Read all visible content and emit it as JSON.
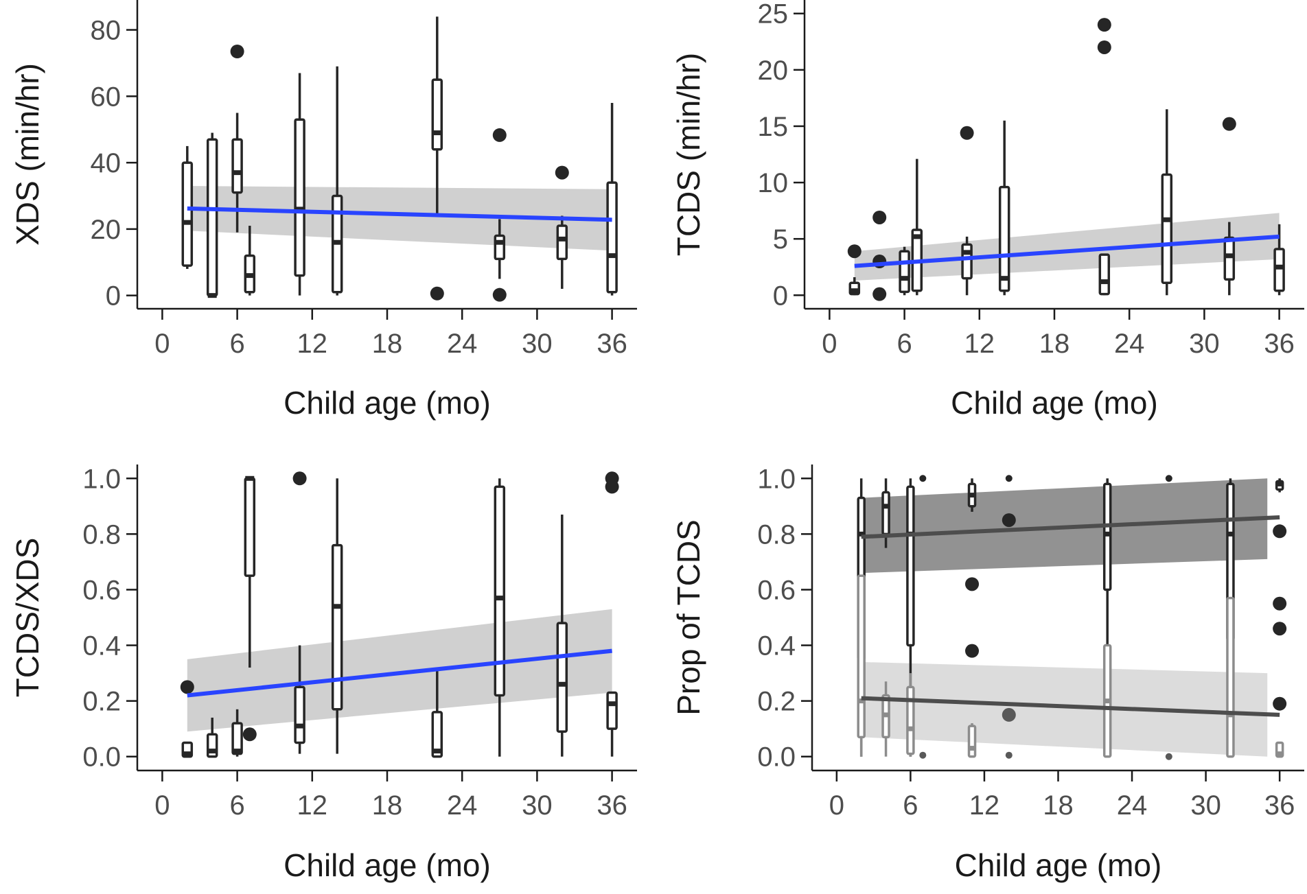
{
  "chart_data": [
    {
      "type": "box",
      "xlabel": "Child age (mo)",
      "ylabel": "XDS (min/hr)",
      "xlim": [
        -2,
        38
      ],
      "ylim": [
        -4,
        89
      ],
      "xticks": [
        0,
        6,
        12,
        18,
        24,
        30,
        36
      ],
      "yticks": [
        0,
        20,
        40,
        60,
        80
      ],
      "tick_labels_x": [
        "0",
        "6",
        "12",
        "18",
        "24",
        "30",
        "36"
      ],
      "tick_labels_y": [
        "0",
        "20",
        "40",
        "60",
        "80"
      ],
      "grid": false,
      "boxes": [
        {
          "x": 2,
          "lower": 8,
          "q1": 9,
          "median": 22,
          "q3": 40,
          "upper": 45
        },
        {
          "x": 4,
          "lower": 0,
          "q1": 0,
          "median": 0,
          "q3": 47,
          "upper": 49
        },
        {
          "x": 6,
          "lower": 19,
          "q1": 31,
          "median": 37,
          "q3": 47,
          "upper": 55
        },
        {
          "x": 7,
          "lower": 0,
          "q1": 1,
          "median": 6,
          "q3": 12,
          "upper": 21
        },
        {
          "x": 11,
          "lower": 0,
          "q1": 6,
          "median": 26,
          "q3": 53,
          "upper": 67
        },
        {
          "x": 14,
          "lower": 0,
          "q1": 1,
          "median": 16,
          "q3": 30,
          "upper": 69
        },
        {
          "x": 22,
          "lower": 24,
          "q1": 44,
          "median": 49,
          "q3": 65,
          "upper": 84
        },
        {
          "x": 27,
          "lower": 5,
          "q1": 11,
          "median": 16,
          "q3": 18,
          "upper": 23
        },
        {
          "x": 32,
          "lower": 2,
          "q1": 11,
          "median": 17,
          "q3": 21,
          "upper": 24
        },
        {
          "x": 36,
          "lower": 0,
          "q1": 1,
          "median": 12,
          "q3": 34,
          "upper": 58
        }
      ],
      "outliers": [
        [
          6,
          73.5
        ],
        [
          22,
          0.6
        ],
        [
          27,
          48.3
        ],
        [
          27,
          0.2
        ],
        [
          32,
          37
        ]
      ],
      "fit_line": {
        "x": [
          2,
          36
        ],
        "y": [
          26.2,
          22.8
        ],
        "color": "#2944ff"
      },
      "band": {
        "x": [
          2,
          36
        ],
        "lower": [
          19.5,
          13.5
        ],
        "upper": [
          33,
          32
        ]
      }
    },
    {
      "type": "box",
      "xlabel": "Child age (mo)",
      "ylabel": "TCDS (min/hr)",
      "xlim": [
        -2,
        38
      ],
      "ylim": [
        -1.2,
        26.2
      ],
      "xticks": [
        0,
        6,
        12,
        18,
        24,
        30,
        36
      ],
      "yticks": [
        0,
        5,
        10,
        15,
        20,
        25
      ],
      "tick_labels_x": [
        "0",
        "6",
        "12",
        "18",
        "24",
        "30",
        "36"
      ],
      "tick_labels_y": [
        "0",
        "5",
        "10",
        "15",
        "20",
        "25"
      ],
      "grid": false,
      "boxes": [
        {
          "x": 2,
          "lower": 0,
          "q1": 0.1,
          "median": 0.4,
          "q3": 1.1,
          "upper": 1.6
        },
        {
          "x": 6,
          "lower": 0,
          "q1": 0.3,
          "median": 1.5,
          "q3": 3.9,
          "upper": 4.3
        },
        {
          "x": 7,
          "lower": 0,
          "q1": 0.4,
          "median": 5.2,
          "q3": 5.8,
          "upper": 12.1
        },
        {
          "x": 11,
          "lower": 0,
          "q1": 1.5,
          "median": 3.8,
          "q3": 4.5,
          "upper": 5.2
        },
        {
          "x": 14,
          "lower": 0,
          "q1": 0.4,
          "median": 1.5,
          "q3": 9.6,
          "upper": 15.5
        },
        {
          "x": 22,
          "lower": 0,
          "q1": 0.1,
          "median": 1.2,
          "q3": 3.6,
          "upper": 3.6
        },
        {
          "x": 27,
          "lower": 0,
          "q1": 1.1,
          "median": 6.7,
          "q3": 10.7,
          "upper": 16.5
        },
        {
          "x": 32,
          "lower": 0,
          "q1": 1.4,
          "median": 3.5,
          "q3": 5.1,
          "upper": 6.5
        },
        {
          "x": 36,
          "lower": 0,
          "q1": 0.4,
          "median": 2.5,
          "q3": 4.1,
          "upper": 6.3
        }
      ],
      "outliers": [
        [
          2,
          3.9
        ],
        [
          4,
          6.9
        ],
        [
          4,
          3
        ],
        [
          4,
          0.1
        ],
        [
          11,
          14.4
        ],
        [
          22,
          24
        ],
        [
          22,
          22
        ],
        [
          32,
          15.2
        ]
      ],
      "fit_line": {
        "x": [
          2,
          36
        ],
        "y": [
          2.6,
          5.2
        ],
        "color": "#2944ff"
      },
      "band": {
        "x": [
          2,
          36
        ],
        "lower": [
          1.3,
          3.2
        ],
        "upper": [
          3.9,
          7.3
        ]
      }
    },
    {
      "type": "box",
      "xlabel": "Child age (mo)",
      "ylabel": "TCDS/XDS",
      "xlim": [
        -2,
        38
      ],
      "ylim": [
        -0.05,
        1.05
      ],
      "xticks": [
        0,
        6,
        12,
        18,
        24,
        30,
        36
      ],
      "yticks": [
        0,
        0.2,
        0.4,
        0.6,
        0.8,
        1.0
      ],
      "tick_labels_x": [
        "0",
        "6",
        "12",
        "18",
        "24",
        "30",
        "36"
      ],
      "tick_labels_y": [
        "0.0",
        "0.2",
        "0.4",
        "0.6",
        "0.8",
        "1.0"
      ],
      "grid": false,
      "boxes": [
        {
          "x": 2,
          "lower": 0,
          "q1": 0,
          "median": 0.01,
          "q3": 0.05,
          "upper": 0.05
        },
        {
          "x": 4,
          "lower": 0,
          "q1": 0,
          "median": 0.02,
          "q3": 0.08,
          "upper": 0.14
        },
        {
          "x": 6,
          "lower": 0,
          "q1": 0.01,
          "median": 0.02,
          "q3": 0.12,
          "upper": 0.17
        },
        {
          "x": 7,
          "lower": 0.32,
          "q1": 0.65,
          "median": 1.0,
          "q3": 1.0,
          "upper": 1.0
        },
        {
          "x": 11,
          "lower": 0.01,
          "q1": 0.05,
          "median": 0.11,
          "q3": 0.25,
          "upper": 0.4
        },
        {
          "x": 14,
          "lower": 0.01,
          "q1": 0.17,
          "median": 0.54,
          "q3": 0.76,
          "upper": 1.0
        },
        {
          "x": 22,
          "lower": 0,
          "q1": 0,
          "median": 0.02,
          "q3": 0.16,
          "upper": 0.31
        },
        {
          "x": 27,
          "lower": 0,
          "q1": 0.22,
          "median": 0.57,
          "q3": 0.97,
          "upper": 1.0
        },
        {
          "x": 32,
          "lower": 0,
          "q1": 0.09,
          "median": 0.26,
          "q3": 0.48,
          "upper": 0.87
        },
        {
          "x": 36,
          "lower": 0,
          "q1": 0.1,
          "median": 0.19,
          "q3": 0.23,
          "upper": 0.23
        }
      ],
      "outliers": [
        [
          2,
          0.25
        ],
        [
          7,
          0.08
        ],
        [
          11,
          1.0
        ],
        [
          36,
          1.0
        ],
        [
          36,
          0.97
        ]
      ],
      "fit_line": {
        "x": [
          2,
          36
        ],
        "y": [
          0.22,
          0.38
        ],
        "color": "#2944ff"
      },
      "band": {
        "x": [
          2,
          36
        ],
        "lower": [
          0.09,
          0.23
        ],
        "upper": [
          0.35,
          0.53
        ]
      }
    },
    {
      "type": "box",
      "xlabel": "Child age (mo)",
      "ylabel": "Prop of TCDS",
      "xlim": [
        -2,
        38
      ],
      "ylim": [
        -0.05,
        1.05
      ],
      "xticks": [
        0,
        6,
        12,
        18,
        24,
        30,
        36
      ],
      "yticks": [
        0,
        0.2,
        0.4,
        0.6,
        0.8,
        1.0
      ],
      "tick_labels_x": [
        "0",
        "6",
        "12",
        "18",
        "24",
        "30",
        "36"
      ],
      "tick_labels_y": [
        "0.0",
        "0.2",
        "0.4",
        "0.6",
        "0.8",
        "1.0"
      ],
      "grid": false,
      "series": [
        {
          "shade": "dark",
          "color": "#262626",
          "boxes": [
            {
              "x": 2,
              "lower": 0,
              "q1": 0.35,
              "median": 0.8,
              "q3": 0.93,
              "upper": 1.0
            },
            {
              "x": 4,
              "lower": 0.75,
              "q1": 0.8,
              "median": 0.9,
              "q3": 0.95,
              "upper": 1.0
            },
            {
              "x": 6,
              "lower": 0,
              "q1": 0.4,
              "median": 0.8,
              "q3": 0.97,
              "upper": 1.0
            },
            {
              "x": 11,
              "lower": 0.88,
              "q1": 0.9,
              "median": 0.94,
              "q3": 0.98,
              "upper": 1.0
            },
            {
              "x": 22,
              "lower": 0,
              "q1": 0.6,
              "median": 0.8,
              "q3": 0.98,
              "upper": 1.0
            },
            {
              "x": 32,
              "lower": 0,
              "q1": 0.42,
              "median": 0.8,
              "q3": 0.98,
              "upper": 1.0
            },
            {
              "x": 36,
              "lower": 0.95,
              "q1": 0.96,
              "median": 0.98,
              "q3": 0.99,
              "upper": 1.0
            }
          ],
          "outliers": [
            [
              7,
              1.0
            ],
            [
              14,
              1.0
            ],
            [
              14,
              0.85
            ],
            [
              11,
              0.62
            ],
            [
              11,
              0.38
            ],
            [
              27,
              1.0
            ],
            [
              36,
              0.81
            ],
            [
              36,
              0.55
            ],
            [
              36,
              0.46
            ],
            [
              36,
              0.19
            ]
          ],
          "fit_line": {
            "x": [
              2,
              36
            ],
            "y": [
              0.79,
              0.86
            ]
          },
          "band": {
            "x": [
              2,
              35
            ],
            "lower": [
              0.66,
              0.71
            ],
            "upper": [
              0.93,
              1.0
            ]
          }
        },
        {
          "shade": "light",
          "color": "#8c8c8c",
          "boxes": [
            {
              "x": 2,
              "lower": 0,
              "q1": 0.07,
              "median": 0.2,
              "q3": 0.65,
              "upper": 0.65
            },
            {
              "x": 4,
              "lower": 0,
              "q1": 0.07,
              "median": 0.15,
              "q3": 0.22,
              "upper": 0.27
            },
            {
              "x": 6,
              "lower": 0,
              "q1": 0.01,
              "median": 0.1,
              "q3": 0.25,
              "upper": 0.3
            },
            {
              "x": 11,
              "lower": 0,
              "q1": 0,
              "median": 0.03,
              "q3": 0.11,
              "upper": 0.12
            },
            {
              "x": 22,
              "lower": 0,
              "q1": 0,
              "median": 0.2,
              "q3": 0.4,
              "upper": 0.4
            },
            {
              "x": 32,
              "lower": 0,
              "q1": 0,
              "median": 0.15,
              "q3": 0.57,
              "upper": 0.57
            },
            {
              "x": 36,
              "lower": 0,
              "q1": 0,
              "median": 0.01,
              "q3": 0.05,
              "upper": 0.05
            }
          ],
          "outliers": [
            [
              14,
              0.15
            ],
            [
              14,
              0.005
            ],
            [
              7,
              0.005
            ],
            [
              27,
              0.0
            ]
          ],
          "fit_line": {
            "x": [
              2,
              36
            ],
            "y": [
              0.21,
              0.15
            ]
          },
          "band": {
            "x": [
              2,
              35
            ],
            "lower": [
              0.07,
              0.0
            ],
            "upper": [
              0.34,
              0.3
            ]
          }
        }
      ]
    }
  ]
}
